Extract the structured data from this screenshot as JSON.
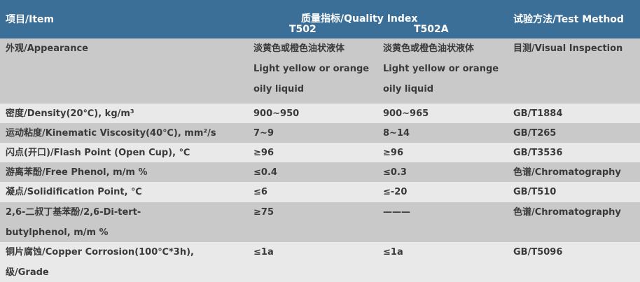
{
  "header": {
    "item": "项目/Item",
    "quality_index": "质量指标/Quality Index",
    "grades": [
      "T502",
      "T502A"
    ],
    "test_method": "试验方法/Test Method"
  },
  "rows": [
    [
      [
        "外观/Appearance"
      ],
      [
        "淡黄色或橙色油状液体",
        "Light yellow or orange",
        "oily liquid"
      ],
      [
        "淡黄色或橙色油状液体",
        "Light yellow or orange",
        "oily liquid"
      ],
      [
        "目测/Visual Inspection"
      ]
    ],
    [
      [
        "密度/Density(20℃), kg/m³"
      ],
      [
        "900~950"
      ],
      [
        "900~965"
      ],
      [
        "GB/T1884"
      ]
    ],
    [
      [
        "运动粘度/Kinematic Viscosity(40℃), mm²/s"
      ],
      [
        "7~9"
      ],
      [
        "8~14"
      ],
      [
        "GB/T265"
      ]
    ],
    [
      [
        "闪点(开口)/Flash Point (Open Cup), ℃"
      ],
      [
        "≥96"
      ],
      [
        "≥96"
      ],
      [
        "GB/T3536"
      ]
    ],
    [
      [
        "游离苯酚/Free Phenol, m/m %"
      ],
      [
        "≤0.4"
      ],
      [
        "≤0.3"
      ],
      [
        "色谱/Chromatography"
      ]
    ],
    [
      [
        "凝点/Solidification Point, ℃"
      ],
      [
        "≤6"
      ],
      [
        "≤-20"
      ],
      [
        "GB/T510"
      ]
    ],
    [
      [
        "2,6-二叔丁基苯酚/2,6-Di-tert-",
        "butylphenol, m/m %"
      ],
      [
        "≥75"
      ],
      [
        "———"
      ],
      [
        "色谱/Chromatography"
      ]
    ],
    [
      [
        "铜片腐蚀/Copper Corrosion(100℃*3h),",
        "级/Grade"
      ],
      [
        "≤1a"
      ],
      [
        "≤1a"
      ],
      [
        "GB/T5096"
      ]
    ]
  ]
}
